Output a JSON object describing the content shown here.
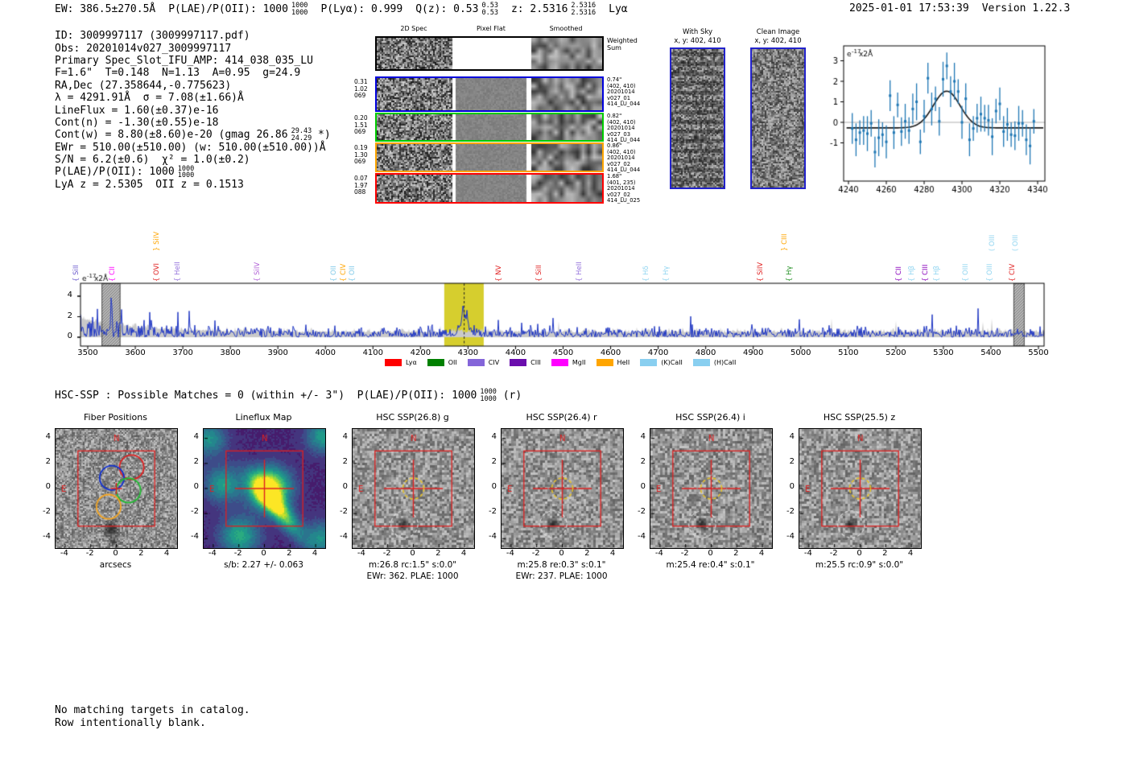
{
  "header": {
    "ew": "EW: 386.5±270.5Å",
    "plae_pre": "P(LAE)/P(OII): 1000",
    "plae_hi": "1000",
    "plae_lo": "1000",
    "plya": "P(Lyα): 0.999",
    "qz_pre": "Q(z): 0.53",
    "qz_hi": "0.53",
    "qz_lo": "0.53",
    "z_pre": "z: 2.5316",
    "z_hi": "2.5316",
    "z_lo": "2.5316",
    "tail": "Lyα",
    "datetime": "2025-01-01 17:53:39",
    "version": "Version 1.22.3"
  },
  "info": {
    "lines": [
      "ID: 3009997117 (3009997117.pdf)",
      "Obs: 20201014v027_3009997117",
      "Primary Spec_Slot_IFU_AMP: 414_038_035_LU",
      "F=1.6\"  T=0.148  N=1.13  A=0.95  g=24.9",
      "RA,Dec (27.358644,-0.775623)",
      "λ = 4291.91Å  σ = 7.08(±1.66)Å",
      "LineFlux = 1.60(±0.37)e-16",
      "Cont(n) = -1.30(±0.55)e-18",
      {
        "pre": "Cont(w) = 8.80(±8.60)e-20 (gmag 26.86",
        "hi": "29.43",
        "lo": "24.29",
        "post": " *)"
      },
      "EWr = 510.00(±510.00) (w: 510.00(±510.00))Å",
      "S/N = 6.2(±0.6)  χ² = 1.0(±0.2)",
      {
        "pre": "P(LAE)/P(OII): 1000",
        "hi": "1000",
        "lo": "1000",
        "post": ""
      },
      "LyA z = 2.5305  OII z = 0.1513"
    ]
  },
  "spec2d": {
    "col_headers": [
      "2D Spec",
      "Pixel Flat",
      "Smoothed"
    ],
    "rows": [
      {
        "color": "#000000",
        "weighted": true,
        "left": [],
        "right": [
          "Weighted",
          "Sum"
        ]
      },
      {
        "color": "#0000dd",
        "weighted": false,
        "left": [
          "0.31",
          "1.02",
          "069"
        ],
        "right": [
          "0.74\"",
          "(402, 410)",
          "20201014",
          "v027_01",
          "414_LU_044"
        ]
      },
      {
        "color": "#00cc00",
        "weighted": false,
        "left": [
          "0.20",
          "1.51",
          "069"
        ],
        "right": [
          "0.82\"",
          "(402, 410)",
          "20201014",
          "v027_03",
          "414_LU_044"
        ]
      },
      {
        "color": "#ffa500",
        "weighted": false,
        "left": [
          "0.19",
          "1.30",
          "069"
        ],
        "right": [
          "0.86\"",
          "(402, 410)",
          "20201014",
          "v027_02",
          "414_LU_044"
        ]
      },
      {
        "color": "#ff0000",
        "weighted": false,
        "left": [
          "0.07",
          "1.97",
          "088"
        ],
        "right": [
          "1.68\"",
          "(401, 235)",
          "20201014",
          "v027_02",
          "414_LU_025"
        ]
      }
    ]
  },
  "cutimages": {
    "with_sky": {
      "title": "With Sky",
      "coords": "x, y: 402, 410"
    },
    "clean": {
      "title": "Clean Image",
      "coords": "x, y: 402, 410"
    }
  },
  "hsc_line": {
    "pre": "HSC-SSP : Possible Matches = 0 (within +/- 3\")  P(LAE)/P(OII): 1000",
    "hi": "1000",
    "lo": "1000",
    "post": " (r)"
  },
  "cutouts": {
    "ticks": [
      "-4",
      "-2",
      "0",
      "2",
      "4"
    ],
    "compass": {
      "n": "N",
      "e": "E"
    },
    "panels": [
      {
        "id": "fiber",
        "kind": "fiber",
        "title": "Fiber Positions",
        "caption1": "arcsecs",
        "caption2": ""
      },
      {
        "id": "lineflux",
        "kind": "lineflux",
        "title": "Lineflux Map",
        "caption1": "s/b: 2.27 +/- 0.063",
        "caption2": ""
      },
      {
        "id": "g",
        "kind": "hsc",
        "title": "HSC SSP(26.8) g",
        "caption1": "m:26.8 rc:1.5\"  s:0.0\"",
        "caption2": "EWr: 362. PLAE: 1000"
      },
      {
        "id": "r",
        "kind": "hsc",
        "title": "HSC SSP(26.4) r",
        "caption1": "m:25.8  re:0.3\"  s:0.1\"",
        "caption2": "EWr: 237. PLAE: 1000"
      },
      {
        "id": "i",
        "kind": "hsc",
        "title": "HSC SSP(26.4) i",
        "caption1": "m:25.4  re:0.4\"  s:0.1\"",
        "caption2": ""
      },
      {
        "id": "z",
        "kind": "hsc",
        "title": "HSC SSP(25.5) z",
        "caption1": "m:25.5 rc:0.9\"  s:0.0\"",
        "caption2": ""
      }
    ]
  },
  "footer": {
    "line1": "No matching targets in catalog.",
    "line2": "Row intentionally blank."
  },
  "chart_data": [
    {
      "name": "line_fit_inset",
      "type": "scatter",
      "ylabel": {
        "base": "e",
        "exp": "-17",
        "rest": "x2Å"
      },
      "xticks": [
        4240,
        4260,
        4280,
        4300,
        4320,
        4340
      ],
      "yticks": [
        -1,
        0,
        1,
        2,
        3
      ],
      "xlim": [
        4237,
        4344
      ],
      "ylim": [
        -2.8,
        3.7
      ],
      "x_start": 4242,
      "x_step": 2,
      "y": [
        -0.3,
        -0.85,
        -0.5,
        -0.4,
        -0.55,
        -0.05,
        -1.45,
        -0.75,
        -0.6,
        -0.95,
        1.3,
        -0.5,
        0.85,
        -0.45,
        0.05,
        -0.4,
        0.65,
        1.0,
        -0.95,
        0.3,
        2.15,
        0.65,
        1.15,
        0.05,
        2.1,
        2.75,
        1.5,
        2.0,
        1.5,
        0.0,
        1.15,
        -0.85,
        -0.3,
        0.2,
        0.4,
        0.2,
        0.1,
        -0.7,
        0.55,
        0.9,
        -0.45,
        -0.1,
        -0.6,
        -0.65,
        -0.05,
        -0.05,
        -0.85,
        -1.15,
        0.05
      ],
      "yerr_pattern": [
        0.75,
        0.8,
        0.6,
        0.7,
        0.85,
        0.65,
        0.75,
        0.9,
        0.6,
        0.8
      ],
      "fit": {
        "type": "gaussian",
        "center": 4291.91,
        "sigma": 7.08,
        "baseline": -0.27,
        "peak": 1.52
      },
      "marker_color": "#1f77b4",
      "fit_color": "#1a1a1a"
    },
    {
      "name": "full_spectrum",
      "type": "line",
      "xlim": [
        3485,
        5510
      ],
      "xticks": [
        3500,
        3600,
        3700,
        3800,
        3900,
        4000,
        4100,
        4200,
        4300,
        4400,
        4500,
        4600,
        4700,
        4800,
        4900,
        5000,
        5100,
        5200,
        5300,
        5400,
        5500
      ],
      "yticks": [
        0,
        2,
        4
      ],
      "ylabel": {
        "base": "e",
        "exp": "-17",
        "rest": "x2Å"
      },
      "emission_peak": {
        "wavelength": 4291.91,
        "sigma": 7.08
      },
      "highlight_band": [
        4250,
        4333
      ],
      "masked_bands": [
        [
          3530,
          3568
        ],
        [
          5448,
          5470
        ]
      ],
      "line_color": "#2138c4",
      "noise_band_color": "#c9c9c9",
      "highlight_color": "#d6ce2e",
      "synthesized_noise": true,
      "line_labels": [
        {
          "label": "SiII",
          "brace": "{",
          "color": "#6a5acd",
          "wavelength": 3493,
          "tier": 0
        },
        {
          "label": "CII",
          "brace": "{",
          "color": "#ff00ff",
          "wavelength": 3569,
          "tier": 0
        },
        {
          "label": "SiIV",
          "brace": "}",
          "color": "#ffa500",
          "wavelength": 3663,
          "tier": 1
        },
        {
          "label": "OVI",
          "brace": "{",
          "color": "#e02020",
          "wavelength": 3663,
          "tier": 0
        },
        {
          "label": "HeII",
          "brace": "{",
          "color": "#9370db",
          "wavelength": 3707,
          "tier": 0
        },
        {
          "label": "SiIV",
          "brace": "{",
          "color": "#b05fd6",
          "wavelength": 3874,
          "tier": 0
        },
        {
          "label": "OII",
          "brace": "{",
          "color": "#7fc9e8",
          "wavelength": 4035,
          "tier": 0
        },
        {
          "label": "CIV",
          "brace": "{",
          "color": "#ffa500",
          "wavelength": 4055,
          "tier": 0
        },
        {
          "label": "OII",
          "brace": "{",
          "color": "#7fc9e8",
          "wavelength": 4074,
          "tier": 0
        },
        {
          "label": "NV",
          "brace": "{",
          "color": "#e02020",
          "wavelength": 4382,
          "tier": 0
        },
        {
          "label": "SiII",
          "brace": "{",
          "color": "#e02020",
          "wavelength": 4467,
          "tier": 0
        },
        {
          "label": "HeII",
          "brace": "{",
          "color": "#9370db",
          "wavelength": 4552,
          "tier": 0
        },
        {
          "label": "Hδ",
          "brace": "{",
          "color": "#8fd4f0",
          "wavelength": 4692,
          "tier": 0
        },
        {
          "label": "Hγ",
          "brace": "{",
          "color": "#8fd4f0",
          "wavelength": 4734,
          "tier": 0
        },
        {
          "label": "SiIV",
          "brace": "{",
          "color": "#e02020",
          "wavelength": 4932,
          "tier": 0
        },
        {
          "label": "CIII",
          "brace": "}",
          "color": "#ffa500",
          "wavelength": 4983,
          "tier": 1
        },
        {
          "label": "Hγ",
          "brace": "{",
          "color": "#1c8c1c",
          "wavelength": 4993,
          "tier": 0
        },
        {
          "label": "CII",
          "brace": "{",
          "color": "#8800bb",
          "wavelength": 5224,
          "tier": 0
        },
        {
          "label": "Hβ",
          "brace": "{",
          "color": "#8fd4f0",
          "wavelength": 5251,
          "tier": 0
        },
        {
          "label": "CIII",
          "brace": "{",
          "color": "#8800bb",
          "wavelength": 5280,
          "tier": 0
        },
        {
          "label": "Hβ",
          "brace": "{",
          "color": "#8fd4f0",
          "wavelength": 5303,
          "tier": 0
        },
        {
          "label": "OIII",
          "brace": "{",
          "color": "#8fd4f0",
          "wavelength": 5364,
          "tier": 0
        },
        {
          "label": "OIII",
          "brace": "{",
          "color": "#8fd4f0",
          "wavelength": 5415,
          "tier": 0
        },
        {
          "label": "OIII",
          "brace": "(",
          "color": "#8fd4f0",
          "wavelength": 5420,
          "tier": 1
        },
        {
          "label": "CIV",
          "brace": "{",
          "color": "#e02020",
          "wavelength": 5462,
          "tier": 0
        },
        {
          "label": "OIII",
          "brace": "(",
          "color": "#8fd4f0",
          "wavelength": 5469,
          "tier": 1
        }
      ],
      "legend": [
        {
          "label": "Lyα",
          "color": "#ff0000"
        },
        {
          "label": "OII",
          "color": "#008000"
        },
        {
          "label": "CIV",
          "color": "#8465d9"
        },
        {
          "label": "CIII",
          "color": "#6a0dad"
        },
        {
          "label": "MgII",
          "color": "#ff00ff"
        },
        {
          "label": "HeII",
          "color": "#ffa500"
        },
        {
          "label": "(K)CaII",
          "color": "#89cff0"
        },
        {
          "label": "(H)CaII",
          "color": "#89cff0"
        }
      ]
    },
    {
      "name": "lineflux_map",
      "type": "heatmap",
      "title": "Lineflux Map",
      "caption": "s/b: 2.27 +/- 0.063",
      "colormap": "viridis",
      "extent": [
        -4.75,
        4.75,
        -4.75,
        4.75
      ]
    }
  ]
}
